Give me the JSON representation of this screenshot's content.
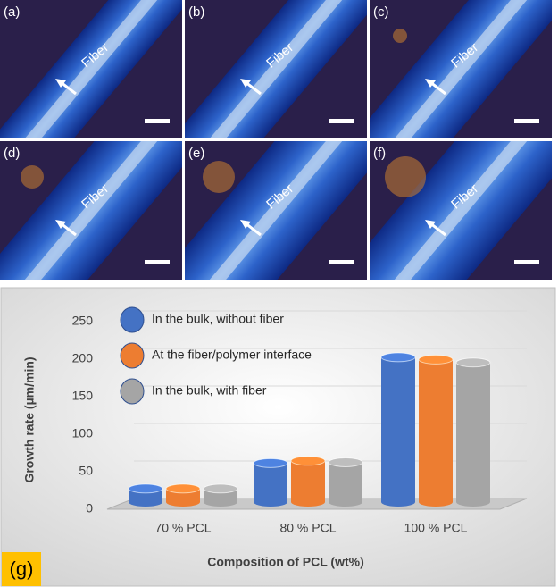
{
  "panels": [
    {
      "label": "(a)",
      "fiber": "Fiber"
    },
    {
      "label": "(b)",
      "fiber": "Fiber"
    },
    {
      "label": "(c)",
      "fiber": "Fiber"
    },
    {
      "label": "(d)",
      "fiber": "Fiber"
    },
    {
      "label": "(e)",
      "fiber": "Fiber"
    },
    {
      "label": "(f)",
      "fiber": "Fiber"
    }
  ],
  "chart_data": {
    "type": "bar",
    "label": "(g)",
    "x_label": "Composition of PCL (wt%)",
    "y_label": "Growth rate (µm/min)",
    "categories": [
      "70 % PCL",
      "80 % PCL",
      "100 % PCL"
    ],
    "series": [
      {
        "name": "In the bulk, without fiber",
        "color": "#4472c4",
        "values": [
          18,
          52,
          193
        ]
      },
      {
        "name": "At the fiber/polymer interface",
        "color": "#ed7d31",
        "values": [
          18,
          55,
          190
        ]
      },
      {
        "name": "In the bulk, with fiber",
        "color": "#a5a5a5",
        "values": [
          18,
          53,
          186
        ]
      }
    ],
    "ylim": [
      0,
      250
    ],
    "yticks": [
      0,
      50,
      100,
      150,
      200,
      250
    ],
    "grid": true
  }
}
